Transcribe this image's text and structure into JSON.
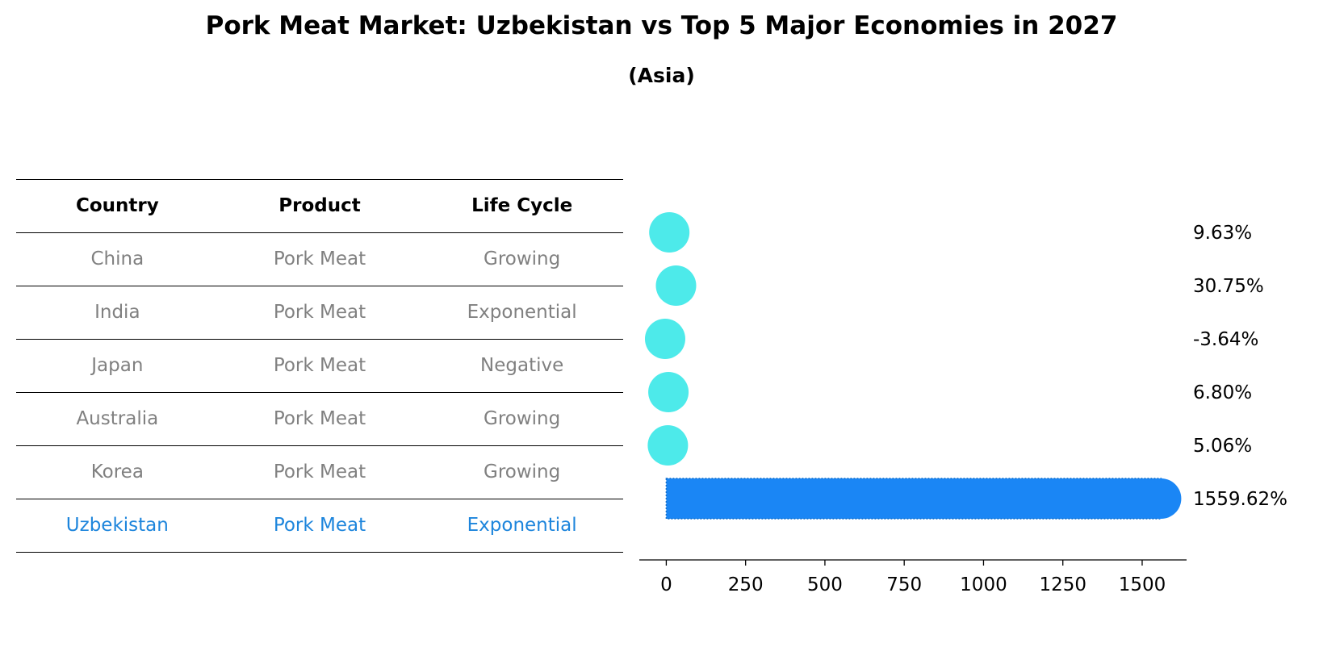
{
  "title": "Pork Meat Market: Uzbekistan vs Top 5 Major Economies in 2027",
  "subtitle": "(Asia)",
  "colors": {
    "dot": "#4deaea",
    "highlight_bar": "#1a86f5",
    "highlight_text": "#1d85dc",
    "row_text": "#808080"
  },
  "table": {
    "headers": [
      "Country",
      "Product",
      "Life Cycle"
    ],
    "rows": [
      [
        "China",
        "Pork Meat",
        "Growing"
      ],
      [
        "India",
        "Pork Meat",
        "Exponential"
      ],
      [
        "Japan",
        "Pork Meat",
        "Negative"
      ],
      [
        "Australia",
        "Pork Meat",
        "Growing"
      ],
      [
        "Korea",
        "Pork Meat",
        "Growing"
      ],
      [
        "Uzbekistan",
        "Pork Meat",
        "Exponential"
      ]
    ],
    "highlight_row": 5
  },
  "chart_data": {
    "type": "bar",
    "orientation": "horizontal",
    "categories": [
      "China",
      "India",
      "Japan",
      "Australia",
      "Korea",
      "Uzbekistan"
    ],
    "values": [
      9.63,
      30.75,
      -3.64,
      6.8,
      5.06,
      1559.62
    ],
    "value_labels": [
      "9.63%",
      "30.75%",
      "-3.64%",
      "6.80%",
      "5.06%",
      "1559.62%"
    ],
    "highlight_index": 5,
    "xlim": [
      -85,
      1640
    ],
    "xticks": [
      0,
      250,
      500,
      750,
      1000,
      1250,
      1500
    ],
    "xlabel": "",
    "ylabel": "",
    "grid": false,
    "legend": "none"
  }
}
